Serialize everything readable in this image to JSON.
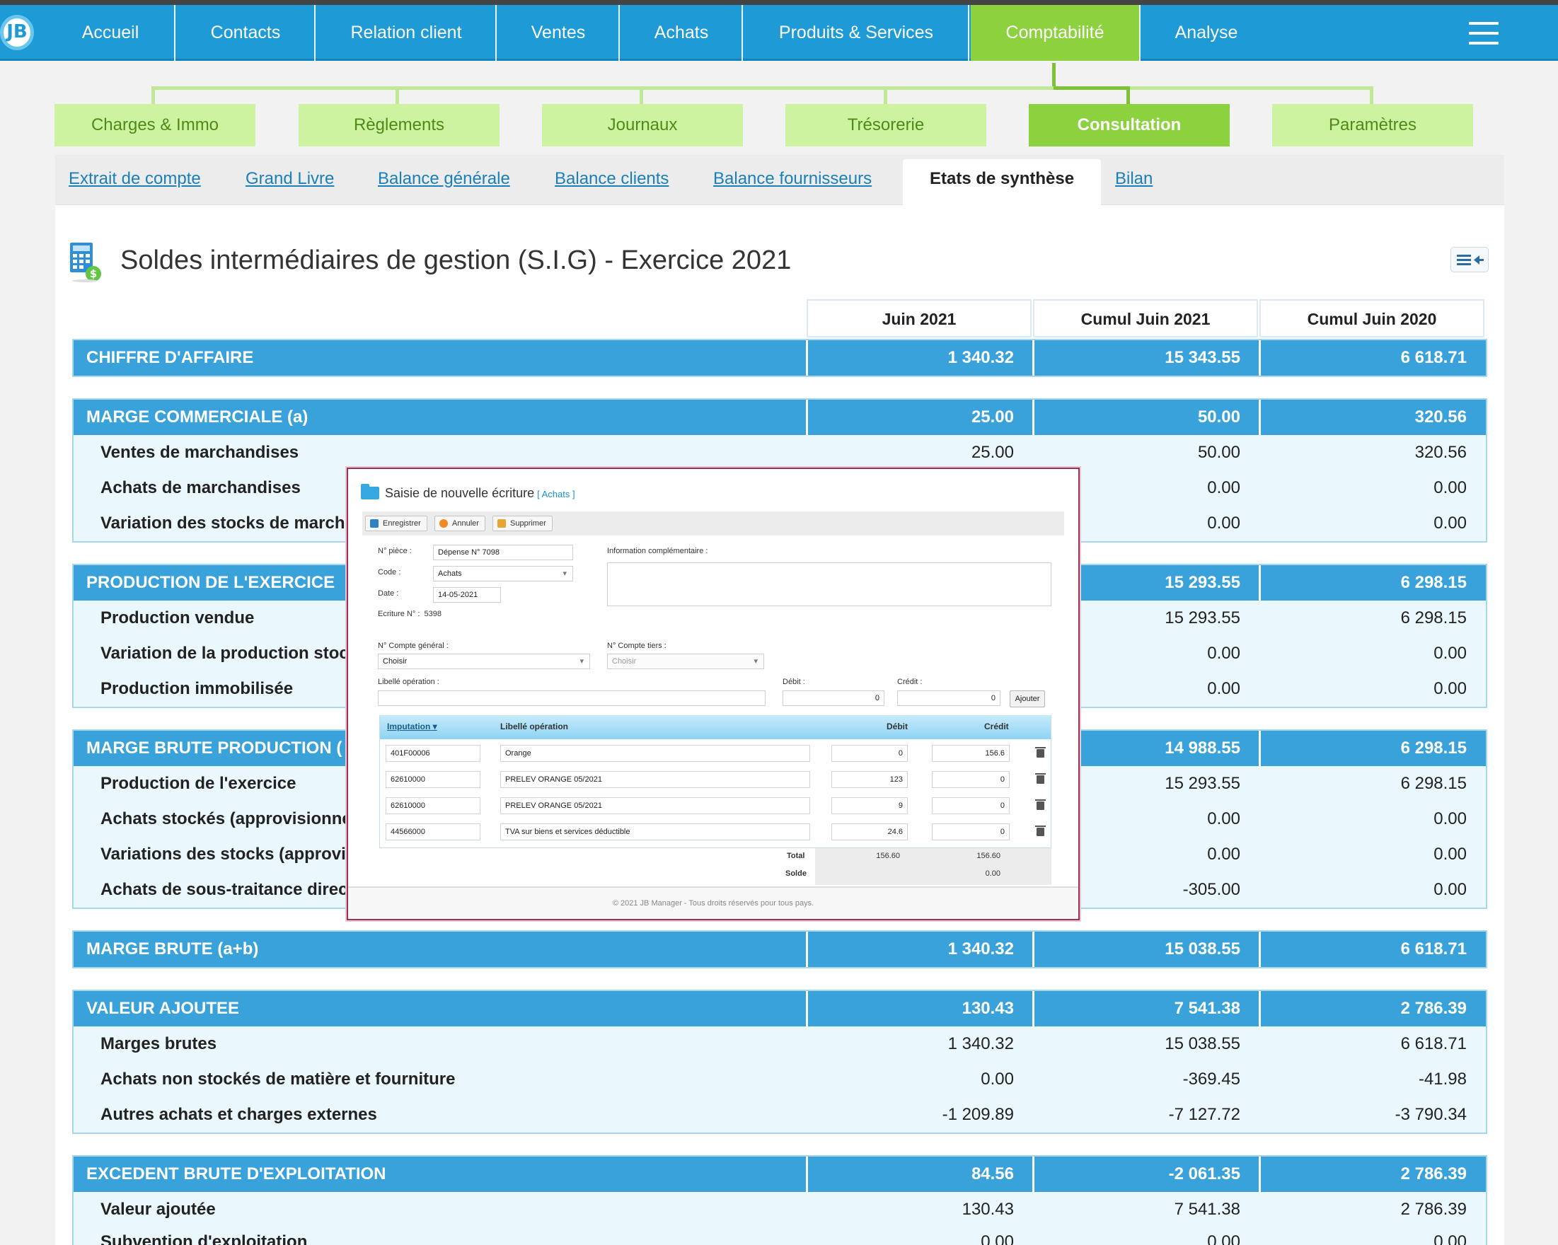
{
  "topnav": {
    "logo": "JB",
    "items": [
      "Accueil",
      "Contacts",
      "Relation client",
      "Ventes",
      "Achats",
      "Produits & Services",
      "Comptabilité",
      "Analyse"
    ],
    "active": "Comptabilité"
  },
  "subnav": {
    "items": [
      "Charges & Immo",
      "Règlements",
      "Journaux",
      "Trésorerie",
      "Consultation",
      "Paramètres"
    ],
    "active": "Consultation"
  },
  "tabs": {
    "items": [
      "Extrait de compte",
      "Grand Livre",
      "Balance générale",
      "Balance clients",
      "Balance fournisseurs",
      "Etats de synthèse",
      "Bilan"
    ],
    "active": "Etats de synthèse"
  },
  "page_title": "Soldes intermédiaires de gestion (S.I.G) - Exercice 2021",
  "columns": [
    "Juin 2021",
    "Cumul Juin 2021",
    "Cumul Juin 2020"
  ],
  "sections": [
    {
      "title": "CHIFFRE D'AFFAIRE",
      "values": [
        "1 340.32",
        "15 343.55",
        "6 618.71"
      ],
      "rows": []
    },
    {
      "title": "MARGE COMMERCIALE (a)",
      "values": [
        "25.00",
        "50.00",
        "320.56"
      ],
      "rows": [
        {
          "label": "Ventes de marchandises",
          "values": [
            "25.00",
            "50.00",
            "320.56"
          ]
        },
        {
          "label": "Achats de marchandises",
          "values": [
            "",
            "0.00",
            "0.00"
          ]
        },
        {
          "label": "Variation des stocks de march",
          "values": [
            "",
            "0.00",
            "0.00"
          ]
        }
      ]
    },
    {
      "title": "PRODUCTION DE L'EXERCICE",
      "values": [
        "",
        "15 293.55",
        "6 298.15"
      ],
      "rows": [
        {
          "label": "Production vendue",
          "values": [
            "",
            "15 293.55",
            "6 298.15"
          ]
        },
        {
          "label": "Variation de la production stoc",
          "values": [
            "",
            "0.00",
            "0.00"
          ]
        },
        {
          "label": "Production immobilisée",
          "values": [
            "",
            "0.00",
            "0.00"
          ]
        }
      ]
    },
    {
      "title": "MARGE BRUTE PRODUCTION (",
      "values": [
        "",
        "14 988.55",
        "6 298.15"
      ],
      "rows": [
        {
          "label": "Production de l'exercice",
          "values": [
            "",
            "15 293.55",
            "6 298.15"
          ]
        },
        {
          "label": "Achats stockés (approvisionne",
          "values": [
            "",
            "0.00",
            "0.00"
          ]
        },
        {
          "label": "Variations des stocks (approvi",
          "values": [
            "",
            "0.00",
            "0.00"
          ]
        },
        {
          "label": "Achats de sous-traitance direc",
          "values": [
            "",
            "-305.00",
            "0.00"
          ]
        }
      ]
    },
    {
      "title": "MARGE BRUTE (a+b)",
      "values": [
        "1 340.32",
        "15 038.55",
        "6 618.71"
      ],
      "rows": []
    },
    {
      "title": "VALEUR AJOUTEE",
      "values": [
        "130.43",
        "7 541.38",
        "2 786.39"
      ],
      "rows": [
        {
          "label": "Marges brutes",
          "values": [
            "1 340.32",
            "15 038.55",
            "6 618.71"
          ]
        },
        {
          "label": "Achats non stockés de matière et fourniture",
          "values": [
            "0.00",
            "-369.45",
            "-41.98"
          ]
        },
        {
          "label": "Autres achats et charges externes",
          "values": [
            "-1 209.89",
            "-7 127.72",
            "-3 790.34"
          ]
        }
      ]
    },
    {
      "title": "EXCEDENT BRUTE D'EXPLOITATION",
      "values": [
        "84.56",
        "-2 061.35",
        "2 786.39"
      ],
      "rows": [
        {
          "label": "Valeur ajoutée",
          "values": [
            "130.43",
            "7 541.38",
            "2 786.39"
          ]
        },
        {
          "label": "Subvention d'exploitation",
          "values": [
            "0.00",
            "0.00",
            "0.00"
          ]
        }
      ]
    }
  ],
  "modal": {
    "title": "Saisie de nouvelle écriture",
    "tag": "[ Achats ]",
    "buttons": [
      "Enregistrer",
      "Annuler",
      "Supprimer"
    ],
    "fields": {
      "piece_label": "N° pièce :",
      "piece_value": "Dépense N° 7098",
      "code_label": "Code :",
      "code_value": "Achats",
      "date_label": "Date :",
      "date_value": "14-05-2021",
      "ecriture_label": "Ecriture N° :",
      "ecriture_value": "5398",
      "info_label": "Information complémentaire :",
      "compte_general_label": "N° Compte général :",
      "compte_general_value": "Choisir",
      "compte_tiers_label": "N° Compte tiers :",
      "compte_tiers_value": "Choisir",
      "libelle_label": "Libellé opération :",
      "libelle_value": "",
      "debit_label": "Débit :",
      "debit_value": "0",
      "credit_label": "Crédit :",
      "credit_value": "0",
      "add_label": "Ajouter"
    },
    "grid_headers": [
      "Imputation",
      "Libellé opération",
      "Débit",
      "Crédit"
    ],
    "lines": [
      {
        "account": "401F00006",
        "label": "Orange",
        "debit": "0",
        "credit": "156.6"
      },
      {
        "account": "62610000",
        "label": "PRELEV ORANGE 05/2021",
        "debit": "123",
        "credit": "0"
      },
      {
        "account": "62610000",
        "label": "PRELEV ORANGE 05/2021",
        "debit": "9",
        "credit": "0"
      },
      {
        "account": "44566000",
        "label": "TVA sur biens et services déductible",
        "debit": "24.6",
        "credit": "0"
      }
    ],
    "total_label": "Total",
    "total_debit": "156.60",
    "total_credit": "156.60",
    "solde_label": "Solde",
    "solde_value": "0.00",
    "footer": "© 2021 JB Manager - Tous droits réservés pour tous pays."
  }
}
